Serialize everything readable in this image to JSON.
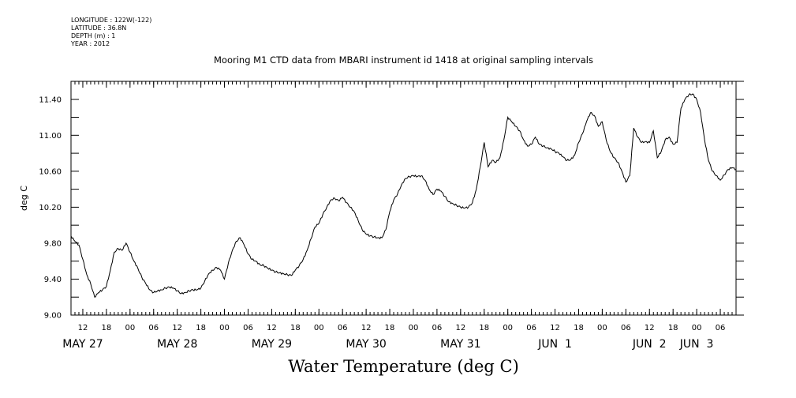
{
  "metadata": {
    "longitude": "LONGITUDE : 122W(-122)",
    "latitude": "LATITUDE : 36.8N",
    "depth": "DEPTH (m) : 1",
    "year": "YEAR : 2012"
  },
  "chart_data": {
    "type": "line",
    "title": "Mooring M1 CTD data from MBARI instrument id 1418 at original sampling intervals",
    "xlabel": "Water Temperature (deg C)",
    "ylabel": "deg C",
    "ylim": [
      9.0,
      11.6
    ],
    "xlim": [
      "2012-05-27 09:00",
      "2012-06-03 10:00"
    ],
    "yticks": [
      "9.00",
      "9.40",
      "9.80",
      "10.20",
      "10.60",
      "11.00",
      "11.40"
    ],
    "hour_ticks": [
      {
        "t": "2012-05-27 12:00",
        "label": "12"
      },
      {
        "t": "2012-05-27 18:00",
        "label": "18"
      },
      {
        "t": "2012-05-28 00:00",
        "label": "00"
      },
      {
        "t": "2012-05-28 06:00",
        "label": "06"
      },
      {
        "t": "2012-05-28 12:00",
        "label": "12"
      },
      {
        "t": "2012-05-28 18:00",
        "label": "18"
      },
      {
        "t": "2012-05-29 00:00",
        "label": "00"
      },
      {
        "t": "2012-05-29 06:00",
        "label": "06"
      },
      {
        "t": "2012-05-29 12:00",
        "label": "12"
      },
      {
        "t": "2012-05-29 18:00",
        "label": "18"
      },
      {
        "t": "2012-05-30 00:00",
        "label": "00"
      },
      {
        "t": "2012-05-30 06:00",
        "label": "06"
      },
      {
        "t": "2012-05-30 12:00",
        "label": "12"
      },
      {
        "t": "2012-05-30 18:00",
        "label": "18"
      },
      {
        "t": "2012-05-31 00:00",
        "label": "00"
      },
      {
        "t": "2012-05-31 06:00",
        "label": "06"
      },
      {
        "t": "2012-05-31 12:00",
        "label": "12"
      },
      {
        "t": "2012-05-31 18:00",
        "label": "18"
      },
      {
        "t": "2012-06-01 00:00",
        "label": "00"
      },
      {
        "t": "2012-06-01 06:00",
        "label": "06"
      },
      {
        "t": "2012-06-01 12:00",
        "label": "12"
      },
      {
        "t": "2012-06-01 18:00",
        "label": "18"
      },
      {
        "t": "2012-06-02 00:00",
        "label": "00"
      },
      {
        "t": "2012-06-02 06:00",
        "label": "06"
      },
      {
        "t": "2012-06-02 12:00",
        "label": "12"
      },
      {
        "t": "2012-06-02 18:00",
        "label": "18"
      },
      {
        "t": "2012-06-03 00:00",
        "label": "00"
      },
      {
        "t": "2012-06-03 06:00",
        "label": "06"
      }
    ],
    "day_labels": [
      {
        "t": "2012-05-27 12:00",
        "label": "MAY 27"
      },
      {
        "t": "2012-05-28 12:00",
        "label": "MAY 28"
      },
      {
        "t": "2012-05-29 12:00",
        "label": "MAY 29"
      },
      {
        "t": "2012-05-30 12:00",
        "label": "MAY 30"
      },
      {
        "t": "2012-05-31 12:00",
        "label": "MAY 31"
      },
      {
        "t": "2012-06-01 12:00",
        "label": "JUN  1"
      },
      {
        "t": "2012-06-02 12:00",
        "label": "JUN  2"
      },
      {
        "t": "2012-06-03 00:00",
        "label": "JUN  3"
      }
    ],
    "series": [
      {
        "points": [
          [
            "2012-05-27 09:00",
            9.88
          ],
          [
            "2012-05-27 10:00",
            9.82
          ],
          [
            "2012-05-27 11:00",
            9.78
          ],
          [
            "2012-05-27 12:00",
            9.62
          ],
          [
            "2012-05-27 13:00",
            9.45
          ],
          [
            "2012-05-27 14:00",
            9.35
          ],
          [
            "2012-05-27 15:00",
            9.2
          ],
          [
            "2012-05-27 16:00",
            9.25
          ],
          [
            "2012-05-27 17:00",
            9.28
          ],
          [
            "2012-05-27 18:00",
            9.32
          ],
          [
            "2012-05-27 19:00",
            9.5
          ],
          [
            "2012-05-27 20:00",
            9.7
          ],
          [
            "2012-05-27 21:00",
            9.74
          ],
          [
            "2012-05-27 22:00",
            9.72
          ],
          [
            "2012-05-27 23:00",
            9.8
          ],
          [
            "2012-05-28 00:00",
            9.7
          ],
          [
            "2012-05-28 01:00",
            9.6
          ],
          [
            "2012-05-28 02:00",
            9.52
          ],
          [
            "2012-05-28 03:00",
            9.42
          ],
          [
            "2012-05-28 04:00",
            9.35
          ],
          [
            "2012-05-28 05:00",
            9.28
          ],
          [
            "2012-05-28 06:00",
            9.25
          ],
          [
            "2012-05-28 07:00",
            9.27
          ],
          [
            "2012-05-28 08:00",
            9.28
          ],
          [
            "2012-05-28 09:00",
            9.3
          ],
          [
            "2012-05-28 10:00",
            9.31
          ],
          [
            "2012-05-28 11:00",
            9.3
          ],
          [
            "2012-05-28 12:00",
            9.27
          ],
          [
            "2012-05-28 13:00",
            9.24
          ],
          [
            "2012-05-28 14:00",
            9.25
          ],
          [
            "2012-05-28 15:00",
            9.27
          ],
          [
            "2012-05-28 16:00",
            9.28
          ],
          [
            "2012-05-28 17:00",
            9.28
          ],
          [
            "2012-05-28 18:00",
            9.3
          ],
          [
            "2012-05-28 19:00",
            9.38
          ],
          [
            "2012-05-28 20:00",
            9.46
          ],
          [
            "2012-05-28 21:00",
            9.5
          ],
          [
            "2012-05-28 22:00",
            9.53
          ],
          [
            "2012-05-28 23:00",
            9.5
          ],
          [
            "2012-05-29 00:00",
            9.4
          ],
          [
            "2012-05-29 01:00",
            9.58
          ],
          [
            "2012-05-29 02:00",
            9.72
          ],
          [
            "2012-05-29 03:00",
            9.82
          ],
          [
            "2012-05-29 04:00",
            9.86
          ],
          [
            "2012-05-29 05:00",
            9.78
          ],
          [
            "2012-05-29 06:00",
            9.68
          ],
          [
            "2012-05-29 07:00",
            9.62
          ],
          [
            "2012-05-29 08:00",
            9.6
          ],
          [
            "2012-05-29 09:00",
            9.56
          ],
          [
            "2012-05-29 10:00",
            9.55
          ],
          [
            "2012-05-29 11:00",
            9.52
          ],
          [
            "2012-05-29 12:00",
            9.5
          ],
          [
            "2012-05-29 13:00",
            9.48
          ],
          [
            "2012-05-29 14:00",
            9.47
          ],
          [
            "2012-05-29 15:00",
            9.46
          ],
          [
            "2012-05-29 16:00",
            9.45
          ],
          [
            "2012-05-29 17:00",
            9.44
          ],
          [
            "2012-05-29 18:00",
            9.5
          ],
          [
            "2012-05-29 19:00",
            9.55
          ],
          [
            "2012-05-29 20:00",
            9.62
          ],
          [
            "2012-05-29 21:00",
            9.72
          ],
          [
            "2012-05-29 22:00",
            9.85
          ],
          [
            "2012-05-29 23:00",
            9.98
          ],
          [
            "2012-05-30 00:00",
            10.02
          ],
          [
            "2012-05-30 01:00",
            10.12
          ],
          [
            "2012-05-30 02:00",
            10.2
          ],
          [
            "2012-05-30 03:00",
            10.28
          ],
          [
            "2012-05-30 04:00",
            10.3
          ],
          [
            "2012-05-30 05:00",
            10.27
          ],
          [
            "2012-05-30 06:00",
            10.31
          ],
          [
            "2012-05-30 07:00",
            10.25
          ],
          [
            "2012-05-30 08:00",
            10.2
          ],
          [
            "2012-05-30 09:00",
            10.15
          ],
          [
            "2012-05-30 10:00",
            10.05
          ],
          [
            "2012-05-30 11:00",
            9.95
          ],
          [
            "2012-05-30 12:00",
            9.9
          ],
          [
            "2012-05-30 13:00",
            9.88
          ],
          [
            "2012-05-30 14:00",
            9.87
          ],
          [
            "2012-05-30 15:00",
            9.86
          ],
          [
            "2012-05-30 16:00",
            9.86
          ],
          [
            "2012-05-30 17:00",
            9.95
          ],
          [
            "2012-05-30 18:00",
            10.15
          ],
          [
            "2012-05-30 19:00",
            10.28
          ],
          [
            "2012-05-30 20:00",
            10.35
          ],
          [
            "2012-05-30 21:00",
            10.45
          ],
          [
            "2012-05-30 22:00",
            10.52
          ],
          [
            "2012-05-30 23:00",
            10.54
          ],
          [
            "2012-05-31 00:00",
            10.55
          ],
          [
            "2012-05-31 01:00",
            10.54
          ],
          [
            "2012-05-31 02:00",
            10.55
          ],
          [
            "2012-05-31 03:00",
            10.5
          ],
          [
            "2012-05-31 04:00",
            10.4
          ],
          [
            "2012-05-31 05:00",
            10.34
          ],
          [
            "2012-05-31 06:00",
            10.4
          ],
          [
            "2012-05-31 07:00",
            10.38
          ],
          [
            "2012-05-31 08:00",
            10.32
          ],
          [
            "2012-05-31 09:00",
            10.26
          ],
          [
            "2012-05-31 10:00",
            10.24
          ],
          [
            "2012-05-31 11:00",
            10.22
          ],
          [
            "2012-05-31 12:00",
            10.2
          ],
          [
            "2012-05-31 13:00",
            10.19
          ],
          [
            "2012-05-31 14:00",
            10.2
          ],
          [
            "2012-05-31 15:00",
            10.25
          ],
          [
            "2012-05-31 16:00",
            10.4
          ],
          [
            "2012-05-31 17:00",
            10.65
          ],
          [
            "2012-05-31 18:00",
            10.92
          ],
          [
            "2012-05-31 19:00",
            10.65
          ],
          [
            "2012-05-31 20:00",
            10.72
          ],
          [
            "2012-05-31 21:00",
            10.7
          ],
          [
            "2012-05-31 22:00",
            10.75
          ],
          [
            "2012-05-31 23:00",
            10.95
          ],
          [
            "2012-06-01 00:00",
            11.2
          ],
          [
            "2012-06-01 01:00",
            11.15
          ],
          [
            "2012-06-01 02:00",
            11.1
          ],
          [
            "2012-06-01 03:00",
            11.05
          ],
          [
            "2012-06-01 04:00",
            10.95
          ],
          [
            "2012-06-01 05:00",
            10.88
          ],
          [
            "2012-06-01 06:00",
            10.9
          ],
          [
            "2012-06-01 07:00",
            10.98
          ],
          [
            "2012-06-01 08:00",
            10.9
          ],
          [
            "2012-06-01 09:00",
            10.88
          ],
          [
            "2012-06-01 10:00",
            10.86
          ],
          [
            "2012-06-01 11:00",
            10.85
          ],
          [
            "2012-06-01 12:00",
            10.82
          ],
          [
            "2012-06-01 13:00",
            10.8
          ],
          [
            "2012-06-01 14:00",
            10.76
          ],
          [
            "2012-06-01 15:00",
            10.72
          ],
          [
            "2012-06-01 16:00",
            10.73
          ],
          [
            "2012-06-01 17:00",
            10.78
          ],
          [
            "2012-06-01 18:00",
            10.92
          ],
          [
            "2012-06-01 19:00",
            11.02
          ],
          [
            "2012-06-01 20:00",
            11.15
          ],
          [
            "2012-06-01 21:00",
            11.25
          ],
          [
            "2012-06-01 22:00",
            11.22
          ],
          [
            "2012-06-01 23:00",
            11.1
          ],
          [
            "2012-06-02 00:00",
            11.15
          ],
          [
            "2012-06-02 01:00",
            10.95
          ],
          [
            "2012-06-02 02:00",
            10.82
          ],
          [
            "2012-06-02 03:00",
            10.75
          ],
          [
            "2012-06-02 04:00",
            10.7
          ],
          [
            "2012-06-02 05:00",
            10.6
          ],
          [
            "2012-06-02 06:00",
            10.48
          ],
          [
            "2012-06-02 07:00",
            10.55
          ],
          [
            "2012-06-02 08:00",
            11.08
          ],
          [
            "2012-06-02 09:00",
            10.98
          ],
          [
            "2012-06-02 10:00",
            10.92
          ],
          [
            "2012-06-02 11:00",
            10.93
          ],
          [
            "2012-06-02 12:00",
            10.92
          ],
          [
            "2012-06-02 13:00",
            11.05
          ],
          [
            "2012-06-02 14:00",
            10.75
          ],
          [
            "2012-06-02 15:00",
            10.82
          ],
          [
            "2012-06-02 16:00",
            10.95
          ],
          [
            "2012-06-02 17:00",
            10.98
          ],
          [
            "2012-06-02 18:00",
            10.9
          ],
          [
            "2012-06-02 19:00",
            10.92
          ],
          [
            "2012-06-02 20:00",
            11.3
          ],
          [
            "2012-06-02 21:00",
            11.4
          ],
          [
            "2012-06-02 22:00",
            11.45
          ],
          [
            "2012-06-02 23:00",
            11.46
          ],
          [
            "2012-06-03 00:00",
            11.4
          ],
          [
            "2012-06-03 01:00",
            11.25
          ],
          [
            "2012-06-03 02:00",
            10.95
          ],
          [
            "2012-06-03 03:00",
            10.72
          ],
          [
            "2012-06-03 04:00",
            10.6
          ],
          [
            "2012-06-03 05:00",
            10.55
          ],
          [
            "2012-06-03 06:00",
            10.5
          ],
          [
            "2012-06-03 07:00",
            10.56
          ],
          [
            "2012-06-03 08:00",
            10.62
          ],
          [
            "2012-06-03 09:00",
            10.64
          ],
          [
            "2012-06-03 10:00",
            10.62
          ]
        ]
      }
    ]
  }
}
